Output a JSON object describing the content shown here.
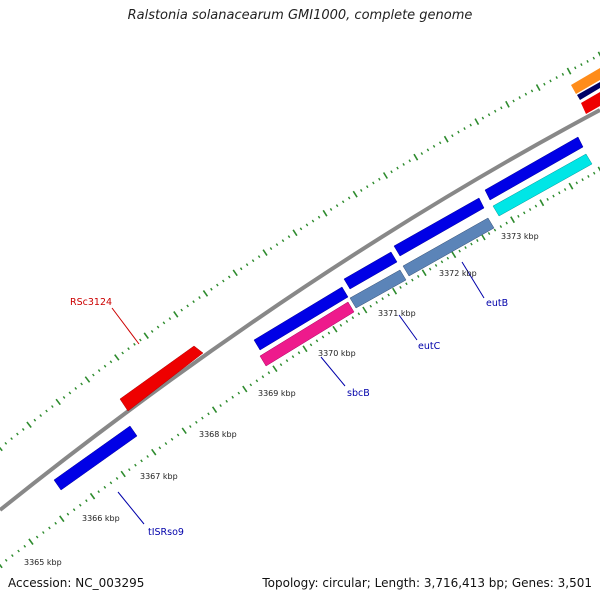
{
  "title": "Ralstonia solanacearum GMI1000, complete genome",
  "footer": {
    "accession": "Accession: NC_003295",
    "summary": "Topology: circular; Length: 3,716,413 bp; Genes: 3,501"
  },
  "scale": {
    "labels": [
      "3365 kbp",
      "3366 kbp",
      "3367 kbp",
      "3368 kbp",
      "3369 kbp",
      "3370 kbp",
      "3371 kbp",
      "3372 kbp",
      "3373 kbp"
    ]
  },
  "gene_labels": [
    {
      "id": "RSc3124",
      "text": "RSc3124",
      "color": "#cc0000"
    },
    {
      "id": "tISRso9",
      "text": "tISRso9",
      "color": "#0000aa"
    },
    {
      "id": "sbcB",
      "text": "sbcB",
      "color": "#0000aa"
    },
    {
      "id": "eutC",
      "text": "eutC",
      "color": "#0000aa"
    },
    {
      "id": "eutB",
      "text": "eutB",
      "color": "#0000aa"
    }
  ],
  "colors": {
    "backbone": "#888888",
    "tick": "#2e8b2e",
    "cds_blue": "#0000e6",
    "cds_red": "#ee0000",
    "magenta": "#ee1a8c",
    "steel": "#5b84b8",
    "cyan": "#00e6e6",
    "orange": "#ff8c1a",
    "navy": "#000066"
  }
}
